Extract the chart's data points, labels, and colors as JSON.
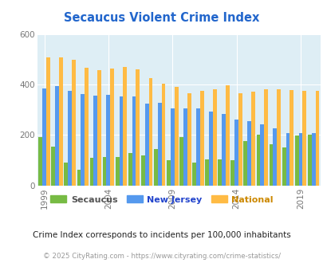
{
  "title": "Secaucus Violent Crime Index",
  "years": [
    1999,
    2000,
    2001,
    2002,
    2003,
    2004,
    2005,
    2006,
    2007,
    2008,
    2009,
    2010,
    2011,
    2012,
    2013,
    2014,
    2015,
    2016,
    2017,
    2018,
    2019,
    2020
  ],
  "secaucus": [
    192,
    155,
    90,
    63,
    110,
    113,
    113,
    128,
    118,
    143,
    100,
    192,
    90,
    103,
    103,
    100,
    176,
    200,
    163,
    150,
    197,
    200
  ],
  "new_jersey": [
    385,
    395,
    375,
    363,
    355,
    358,
    353,
    353,
    325,
    327,
    307,
    305,
    305,
    293,
    283,
    260,
    255,
    243,
    228,
    207,
    207,
    207
  ],
  "national": [
    507,
    507,
    500,
    468,
    457,
    463,
    469,
    460,
    427,
    405,
    390,
    365,
    375,
    383,
    397,
    365,
    373,
    380,
    380,
    379,
    376,
    376
  ],
  "secaucus_color": "#77bb44",
  "nj_color": "#5599ee",
  "national_color": "#ffbb44",
  "background_color": "#ffffff",
  "plot_bg": "#deeef5",
  "ylim": [
    0,
    600
  ],
  "yticks": [
    0,
    200,
    400,
    600
  ],
  "xlabel_ticks": [
    1999,
    2004,
    2009,
    2014,
    2019
  ],
  "subtitle": "Crime Index corresponds to incidents per 100,000 inhabitants",
  "footer": "© 2025 CityRating.com - https://www.cityrating.com/crime-statistics/",
  "legend_labels": [
    "Secaucus",
    "New Jersey",
    "National"
  ],
  "title_color": "#2266cc",
  "subtitle_color": "#222222",
  "footer_color": "#999999",
  "legend_colors": [
    "#77bb44",
    "#5599ee",
    "#ffbb44"
  ],
  "legend_text_colors": [
    "#555555",
    "#2244cc",
    "#cc8800"
  ]
}
